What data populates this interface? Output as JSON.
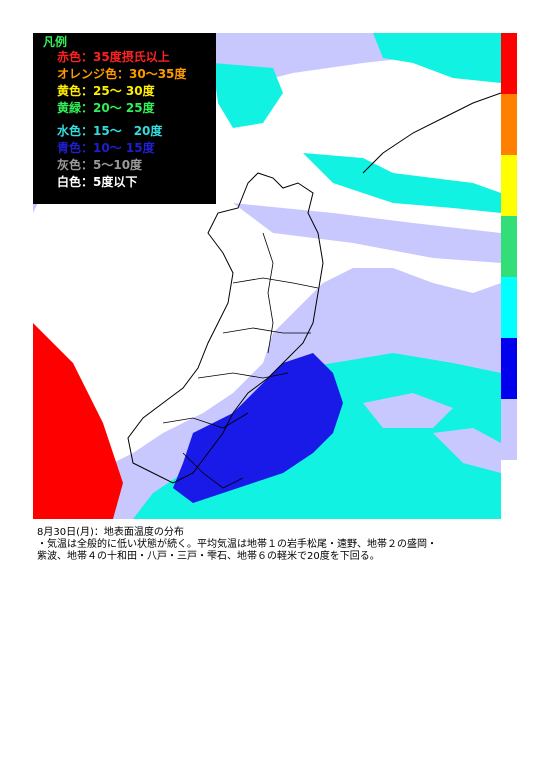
{
  "legend": {
    "title": "凡例",
    "items": [
      {
        "label": "赤色：35度摂氏以上",
        "color": "#ff2020"
      },
      {
        "label": "オレンジ色：30〜35度",
        "color": "#ff9900"
      },
      {
        "label": "黄色：25〜 30度",
        "color": "#ffee00"
      },
      {
        "label": "黄緑：20〜 25度",
        "color": "#33ee55"
      },
      {
        "label": "水色：15〜　20度",
        "color": "#33dddd"
      },
      {
        "label": "青色：10〜 15度",
        "color": "#1f1fd0"
      },
      {
        "label": "灰色：5〜10度",
        "color": "#9a9a9a"
      },
      {
        "label": "白色：5度以下",
        "color": "#ffffff"
      }
    ]
  },
  "colorbar": {
    "colors": [
      "#ff0000",
      "#ff8000",
      "#ffff00",
      "#33dd77",
      "#00ffff",
      "#0000ee",
      "#c8c8ff"
    ]
  },
  "map_colors": {
    "ocean_cyan": "#11f2e2",
    "land_blue": "#1a1ae8",
    "lavender": "#c8c8ff",
    "white": "#ffffff",
    "red": "#ff0000",
    "coast": "#000000"
  },
  "caption": {
    "line1": "8月30日(月)：地表面温度の分布",
    "line2": "・気温は全般的に低い状態が続く。平均気温は地帯１の岩手松尾・遠野、地帯２の盛岡・",
    "line3": "紫波、地帯４の十和田・八戸・三戸・雫石、地帯６の軽米で20度を下回る。"
  }
}
